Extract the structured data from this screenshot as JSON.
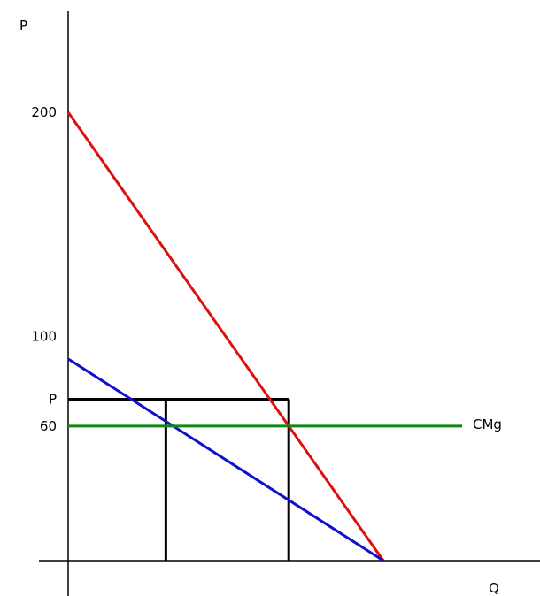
{
  "chart_data": {
    "type": "line",
    "title": "",
    "xlabel": "Q",
    "ylabel": "P",
    "xlim": [
      0,
      170
    ],
    "ylim": [
      0,
      200
    ],
    "yticks": [
      {
        "value": 200,
        "label": "200"
      },
      {
        "value": 100,
        "label": "100"
      },
      {
        "value": 72,
        "label": "P"
      },
      {
        "value": 60,
        "label": "60"
      }
    ],
    "grid": false,
    "series": [
      {
        "color": "#dd1010",
        "points": [
          [
            0,
            200
          ],
          [
            100,
            0
          ]
        ]
      },
      {
        "color": "#1010cc",
        "points": [
          [
            0,
            90
          ],
          [
            100,
            0
          ]
        ]
      },
      {
        "name": "CMg",
        "color": "#118811",
        "points": [
          [
            0,
            60
          ],
          [
            125,
            60
          ]
        ]
      }
    ],
    "guides": [
      {
        "color": "#000000",
        "points": [
          [
            0,
            72
          ],
          [
            70,
            72
          ]
        ]
      },
      {
        "color": "#000000",
        "points": [
          [
            31,
            72
          ],
          [
            31,
            0
          ]
        ]
      },
      {
        "color": "#000000",
        "points": [
          [
            70,
            72
          ],
          [
            70,
            0
          ]
        ]
      }
    ]
  }
}
